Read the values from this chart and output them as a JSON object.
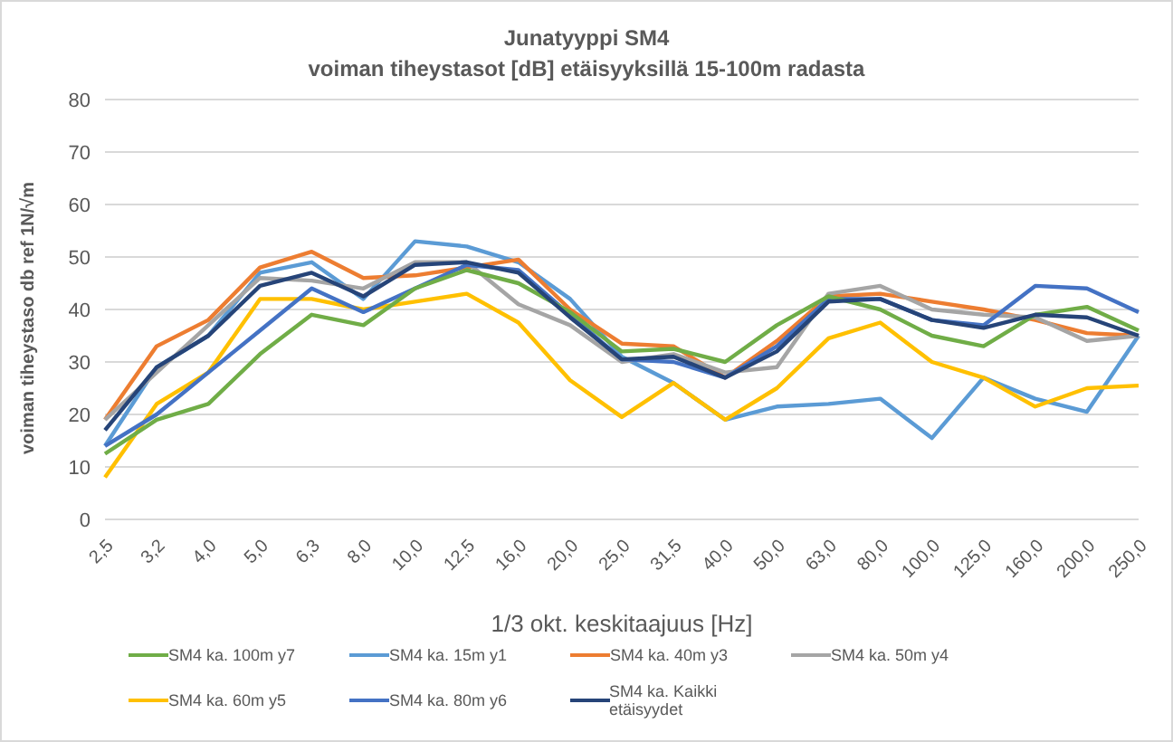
{
  "chart_data": {
    "type": "line",
    "title": "Junatyyppi SM4",
    "subtitle": "voiman tiheystasot [dB] etäisyyksillä 15-100m radasta",
    "xlabel": "1/3 okt. keskitaajuus [Hz]",
    "ylabel": "voiman tiheystaso db ref 1N/√m",
    "categories": [
      "2,5",
      "3,2",
      "4,0",
      "5,0",
      "6,3",
      "8,0",
      "10,0",
      "12,5",
      "16,0",
      "20,0",
      "25,0",
      "31,5",
      "40,0",
      "50,0",
      "63,0",
      "80,0",
      "100,0",
      "125,0",
      "160,0",
      "200,0",
      "250,0"
    ],
    "series": [
      {
        "name": "SM4 ka. 15m y1",
        "color": "#5b9bd5",
        "values": [
          14,
          29,
          35,
          47,
          49,
          42,
          53,
          52,
          49,
          42,
          31,
          26,
          19,
          21.5,
          22,
          23,
          15.5,
          27,
          23,
          20.5,
          35
        ]
      },
      {
        "name": "SM4 ka. 40m y3",
        "color": "#ed7d31",
        "values": [
          19,
          33,
          38,
          48,
          51,
          46,
          46.5,
          48,
          49.5,
          40,
          33.5,
          33,
          27,
          34,
          42.5,
          43,
          41.5,
          40,
          38,
          35.5,
          35
        ]
      },
      {
        "name": "SM4 ka. 50m y4",
        "color": "#a5a5a5",
        "values": [
          19,
          28,
          37,
          46,
          45.5,
          44,
          49,
          49,
          41,
          37,
          30,
          31.5,
          28,
          29,
          43,
          44.5,
          40,
          39,
          38.5,
          34,
          35
        ]
      },
      {
        "name": "SM4 ka. 60m y5",
        "color": "#ffc000",
        "values": [
          8,
          22,
          28,
          42,
          42,
          40,
          41.5,
          43,
          37.5,
          26.5,
          19.5,
          26,
          19,
          25,
          34.5,
          37.5,
          30,
          27,
          21.5,
          25,
          25.5
        ]
      },
      {
        "name": "SM4 ka. 80m y6",
        "color": "#4472c4",
        "values": [
          14,
          20,
          28,
          36,
          44,
          39.5,
          44,
          48.5,
          47.5,
          39,
          30.5,
          30,
          27,
          33,
          42,
          42,
          38,
          37,
          44.5,
          44,
          39.5
        ]
      },
      {
        "name": "SM4 ka. 100m y7",
        "color": "#70ad47",
        "values": [
          12.5,
          19,
          22,
          31.5,
          39,
          37,
          44,
          47.5,
          45,
          39.5,
          32,
          32.5,
          30,
          37,
          42.5,
          40,
          35,
          33,
          39,
          40.5,
          36
        ]
      },
      {
        "name": "SM4 ka. Kaikki etäisyydet",
        "color": "#264478",
        "values": [
          17,
          29,
          35,
          44.5,
          47,
          42.5,
          48.5,
          49,
          47,
          38.5,
          30.5,
          31,
          27,
          32,
          41.5,
          42,
          38,
          36.5,
          39,
          38.5,
          35
        ]
      }
    ],
    "ylim": [
      0,
      80
    ],
    "yticks": [
      0,
      10,
      20,
      30,
      40,
      50,
      60,
      70,
      80
    ],
    "grid": "y",
    "legend": "bottom",
    "marker": "none",
    "line_style": "solid"
  }
}
